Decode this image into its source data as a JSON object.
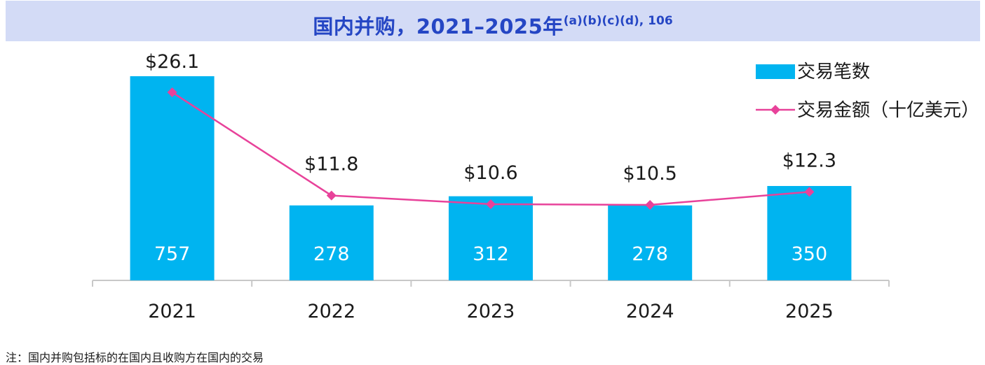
{
  "chart_data": {
    "type": "bar",
    "title": "国内并购，2021–2025年",
    "title_superscript": "(a)(b)(c)(d), 106",
    "categories": [
      "2021",
      "2022",
      "2023",
      "2024",
      "2025"
    ],
    "series": [
      {
        "name": "交易笔数",
        "type": "bar",
        "values": [
          757,
          278,
          312,
          278,
          350
        ],
        "labels": [
          "757",
          "278",
          "312",
          "278",
          "350"
        ],
        "color": "#00b4f0"
      },
      {
        "name": "交易金额（十亿美元）",
        "type": "line",
        "values": [
          26.1,
          11.8,
          10.6,
          10.5,
          12.3
        ],
        "labels": [
          "$26.1",
          "$11.8",
          "$10.6",
          "$10.5",
          "$12.3"
        ],
        "color": "#e8429a",
        "marker": "diamond"
      }
    ],
    "legend_position": "top-right",
    "grid": false
  },
  "footnote": "注：国内并购包括标的在国内且收购方在国内的交易"
}
